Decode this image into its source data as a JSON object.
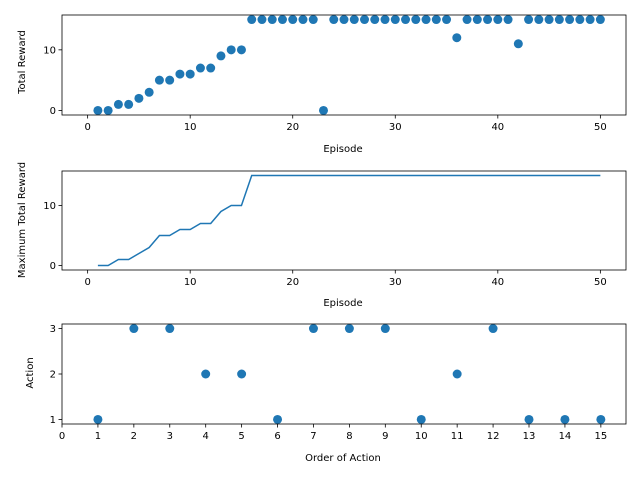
{
  "colors": {
    "series": "#1f77b4",
    "axis": "#000000",
    "background": "#ffffff"
  },
  "chart_data": [
    {
      "type": "scatter",
      "title": "",
      "xlabel": "Episode",
      "ylabel": "Total Reward",
      "xlim": [
        -2.5,
        52.5
      ],
      "ylim": [
        -0.75,
        15.75
      ],
      "xticks": [
        0,
        10,
        20,
        30,
        40,
        50
      ],
      "yticks": [
        0,
        10
      ],
      "grid": false,
      "series": [
        {
          "x": [
            1,
            2,
            3,
            4,
            5,
            6,
            7,
            8,
            9,
            10,
            11,
            12,
            13,
            14,
            15,
            16,
            17,
            18,
            19,
            20,
            21,
            22,
            23,
            24,
            25,
            26,
            27,
            28,
            29,
            30,
            31,
            32,
            33,
            34,
            35,
            36,
            37,
            38,
            39,
            40,
            41,
            42,
            43,
            44,
            45,
            46,
            47,
            48,
            49,
            50
          ],
          "values": [
            0,
            0,
            1,
            1,
            2,
            3,
            5,
            5,
            6,
            6,
            7,
            7,
            9,
            10,
            10,
            15,
            15,
            15,
            15,
            15,
            15,
            15,
            0,
            15,
            15,
            15,
            15,
            15,
            15,
            15,
            15,
            15,
            15,
            15,
            15,
            12,
            15,
            15,
            15,
            15,
            15,
            11,
            15,
            15,
            15,
            15,
            15,
            15,
            15,
            15
          ]
        }
      ]
    },
    {
      "type": "line",
      "title": "",
      "xlabel": "Episode",
      "ylabel": "Maximum Total Reward",
      "xlim": [
        -2.5,
        52.5
      ],
      "ylim": [
        -0.75,
        15.75
      ],
      "xticks": [
        0,
        10,
        20,
        30,
        40,
        50
      ],
      "yticks": [
        0,
        10
      ],
      "grid": false,
      "series": [
        {
          "x": [
            1,
            2,
            3,
            4,
            5,
            6,
            7,
            8,
            9,
            10,
            11,
            12,
            13,
            14,
            15,
            16,
            17,
            18,
            19,
            20,
            21,
            22,
            23,
            24,
            25,
            26,
            27,
            28,
            29,
            30,
            31,
            32,
            33,
            34,
            35,
            36,
            37,
            38,
            39,
            40,
            41,
            42,
            43,
            44,
            45,
            46,
            47,
            48,
            49,
            50
          ],
          "values": [
            0,
            0,
            1,
            1,
            2,
            3,
            5,
            5,
            6,
            6,
            7,
            7,
            9,
            10,
            10,
            15,
            15,
            15,
            15,
            15,
            15,
            15,
            15,
            15,
            15,
            15,
            15,
            15,
            15,
            15,
            15,
            15,
            15,
            15,
            15,
            15,
            15,
            15,
            15,
            15,
            15,
            15,
            15,
            15,
            15,
            15,
            15,
            15,
            15,
            15
          ]
        }
      ]
    },
    {
      "type": "scatter",
      "title": "",
      "xlabel": "Order of Action",
      "ylabel": "Action",
      "xlim": [
        0,
        15.7
      ],
      "ylim": [
        0.9,
        3.1
      ],
      "xticks": [
        0,
        1,
        2,
        3,
        4,
        5,
        6,
        7,
        8,
        9,
        10,
        11,
        12,
        13,
        14,
        15
      ],
      "yticks": [
        1,
        2,
        3
      ],
      "grid": false,
      "series": [
        {
          "x": [
            1,
            2,
            3,
            4,
            5,
            6,
            7,
            8,
            9,
            10,
            11,
            12,
            13,
            14,
            15
          ],
          "values": [
            1,
            3,
            3,
            2,
            2,
            1,
            3,
            3,
            3,
            1,
            2,
            3,
            1,
            1,
            1
          ]
        }
      ]
    }
  ]
}
